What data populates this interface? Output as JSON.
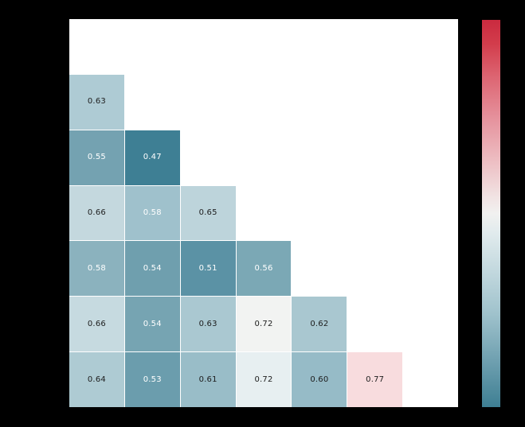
{
  "figure": {
    "background_color": "#000000",
    "axes_background_color": "#ffffff",
    "grid_line_color": "#ffffff"
  },
  "chart_data": {
    "type": "heatmap",
    "title": "",
    "xlabel": "",
    "ylabel": "",
    "rows": 7,
    "cols": 7,
    "mask": "upper-triangle-and-diagonal-hidden",
    "tick_labels_visible": false,
    "annotation_format": "2-decimals",
    "cells": [
      {
        "row": 1,
        "col": 0,
        "value": 0.63,
        "label": "0.63",
        "bg": "#aecbd4",
        "text_color": "#1c1c1c"
      },
      {
        "row": 2,
        "col": 0,
        "value": 0.55,
        "label": "0.55",
        "bg": "#74a2b1",
        "text_color": "#ffffff"
      },
      {
        "row": 2,
        "col": 1,
        "value": 0.47,
        "label": "0.47",
        "bg": "#3e7f94",
        "text_color": "#ffffff"
      },
      {
        "row": 3,
        "col": 0,
        "value": 0.66,
        "label": "0.66",
        "bg": "#c4d8de",
        "text_color": "#1c1c1c"
      },
      {
        "row": 3,
        "col": 1,
        "value": 0.58,
        "label": "0.58",
        "bg": "#9fc1cc",
        "text_color": "#ffffff"
      },
      {
        "row": 3,
        "col": 2,
        "value": 0.65,
        "label": "0.65",
        "bg": "#bdd4db",
        "text_color": "#1c1c1c"
      },
      {
        "row": 4,
        "col": 0,
        "value": 0.58,
        "label": "0.58",
        "bg": "#8bb2be",
        "text_color": "#ffffff"
      },
      {
        "row": 4,
        "col": 1,
        "value": 0.54,
        "label": "0.54",
        "bg": "#6f9fae",
        "text_color": "#ffffff"
      },
      {
        "row": 4,
        "col": 2,
        "value": 0.51,
        "label": "0.51",
        "bg": "#5b92a5",
        "text_color": "#ffffff"
      },
      {
        "row": 4,
        "col": 3,
        "value": 0.56,
        "label": "0.56",
        "bg": "#7ba8b5",
        "text_color": "#ffffff"
      },
      {
        "row": 5,
        "col": 0,
        "value": 0.66,
        "label": "0.66",
        "bg": "#c6dae0",
        "text_color": "#1c1c1c"
      },
      {
        "row": 5,
        "col": 1,
        "value": 0.54,
        "label": "0.54",
        "bg": "#76a4b2",
        "text_color": "#ffffff"
      },
      {
        "row": 5,
        "col": 2,
        "value": 0.63,
        "label": "0.63",
        "bg": "#aac8d1",
        "text_color": "#1c1c1c"
      },
      {
        "row": 5,
        "col": 3,
        "value": 0.72,
        "label": "0.72",
        "bg": "#f2f3f2",
        "text_color": "#1c1c1c"
      },
      {
        "row": 5,
        "col": 4,
        "value": 0.62,
        "label": "0.62",
        "bg": "#a9c7d0",
        "text_color": "#1c1c1c"
      },
      {
        "row": 6,
        "col": 0,
        "value": 0.64,
        "label": "0.64",
        "bg": "#aecbd3",
        "text_color": "#1c1c1c"
      },
      {
        "row": 6,
        "col": 1,
        "value": 0.53,
        "label": "0.53",
        "bg": "#6b9dad",
        "text_color": "#ffffff"
      },
      {
        "row": 6,
        "col": 2,
        "value": 0.61,
        "label": "0.61",
        "bg": "#99bdc8",
        "text_color": "#1c1c1c"
      },
      {
        "row": 6,
        "col": 3,
        "value": 0.72,
        "label": "0.72",
        "bg": "#e7eff1",
        "text_color": "#1c1c1c"
      },
      {
        "row": 6,
        "col": 4,
        "value": 0.6,
        "label": "0.60",
        "bg": "#96bbc7",
        "text_color": "#1c1c1c"
      },
      {
        "row": 6,
        "col": 5,
        "value": 0.77,
        "label": "0.77",
        "bg": "#f8dcde",
        "text_color": "#1c1c1c"
      }
    ],
    "colorbar": {
      "orientation": "vertical",
      "position": "right",
      "tick_labels": [],
      "gradient_stops": [
        {
          "pos": 0,
          "color": "#ca2a3f"
        },
        {
          "pos": 6,
          "color": "#d23c4b"
        },
        {
          "pos": 15,
          "color": "#dd6673"
        },
        {
          "pos": 25,
          "color": "#e5909b"
        },
        {
          "pos": 36,
          "color": "#edbcc1"
        },
        {
          "pos": 46,
          "color": "#f1e4e4"
        },
        {
          "pos": 50,
          "color": "#f1f1f0"
        },
        {
          "pos": 55,
          "color": "#e1ebed"
        },
        {
          "pos": 65,
          "color": "#c2d8de"
        },
        {
          "pos": 76,
          "color": "#9fc2cc"
        },
        {
          "pos": 88,
          "color": "#6fa0b0"
        },
        {
          "pos": 100,
          "color": "#3e7f93"
        }
      ]
    }
  }
}
